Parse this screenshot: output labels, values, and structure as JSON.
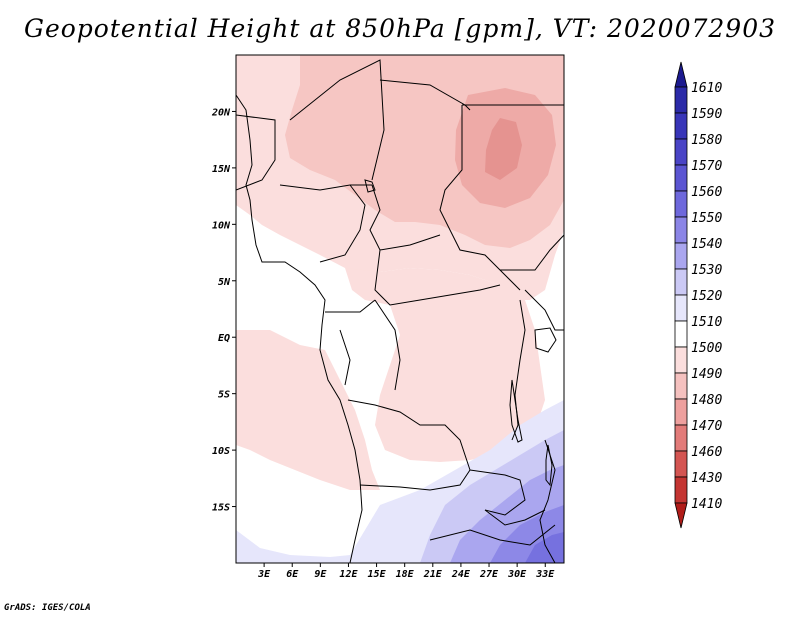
{
  "title": "Geopotential Height at 850hPa [gpm], VT: 2020072903",
  "credit": "GrADS: IGES/COLA",
  "map": {
    "lon_ticks": [
      "3E",
      "6E",
      "9E",
      "12E",
      "15E",
      "18E",
      "21E",
      "24E",
      "27E",
      "30E",
      "33E"
    ],
    "lat_ticks": [
      "20N",
      "15N",
      "10N",
      "5N",
      "EQ",
      "5S",
      "10S",
      "15S"
    ],
    "lon_range_deg": [
      0,
      35
    ],
    "lat_range_deg": [
      -20,
      25
    ]
  },
  "colorbar": {
    "labels": [
      "1610",
      "1590",
      "1580",
      "1570",
      "1560",
      "1550",
      "1540",
      "1530",
      "1520",
      "1510",
      "1500",
      "1490",
      "1480",
      "1470",
      "1460",
      "1430",
      "1410"
    ],
    "colors": [
      "#1c1a8f",
      "#2b2aa8",
      "#3835b8",
      "#4a44c6",
      "#5b55d2",
      "#6e68dc",
      "#8b85e6",
      "#aaa6ef",
      "#cbc9f5",
      "#e6e6fb",
      "#ffffff",
      "#fbdedd",
      "#f5c1bf",
      "#eea09e",
      "#e27b79",
      "#d45552",
      "#c43532",
      "#b01c19"
    ]
  }
}
